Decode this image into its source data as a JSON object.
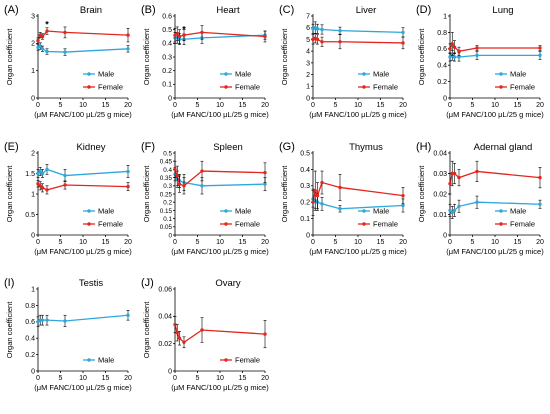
{
  "colors": {
    "male": "#2da7dc",
    "female": "#e3261e",
    "axis": "#000000",
    "errorbar": "#000000"
  },
  "x_axis_label": "(μM FANC/100 μL/25 g mice)",
  "y_axis_label": "Organ coefficient",
  "legend": {
    "male": "Male",
    "female": "Female"
  },
  "chart_data": [
    {
      "type": "line",
      "panel_label": "(A)",
      "title": "Brain",
      "x": [
        0,
        0.5,
        1,
        2,
        6,
        20
      ],
      "xlim": [
        0,
        20
      ],
      "xticks": [
        0,
        5,
        10,
        15,
        20
      ],
      "ylim": [
        0,
        3
      ],
      "yticks": [
        0,
        1,
        2,
        3
      ],
      "ytick_labels": [
        "0",
        "1",
        "2",
        "3"
      ],
      "legend_position": "bottom-right",
      "series": [
        {
          "name": "Male",
          "color_key": "male",
          "values": [
            1.85,
            1.9,
            1.8,
            1.7,
            1.68,
            1.8
          ],
          "errors": [
            0.1,
            0.12,
            0.1,
            0.1,
            0.12,
            0.12
          ]
        },
        {
          "name": "Female",
          "color_key": "female",
          "values": [
            2.1,
            2.3,
            2.25,
            2.45,
            2.4,
            2.3
          ],
          "errors": [
            0.1,
            0.1,
            0.1,
            0.12,
            0.2,
            0.25
          ]
        }
      ],
      "annotations": [
        {
          "text": "*",
          "x": 2,
          "y": 2.72
        }
      ]
    },
    {
      "type": "line",
      "panel_label": "(B)",
      "title": "Heart",
      "x": [
        0,
        0.5,
        1,
        2,
        6,
        20
      ],
      "xlim": [
        0,
        20
      ],
      "xticks": [
        0,
        5,
        10,
        15,
        20
      ],
      "ylim": [
        0,
        0.6
      ],
      "yticks": [
        0,
        0.1,
        0.2,
        0.3,
        0.4,
        0.5,
        0.6
      ],
      "ytick_labels": [
        "0",
        "0.1",
        "0.2",
        "0.3",
        "0.4",
        "0.5",
        "0.6"
      ],
      "legend_position": "bottom-right",
      "series": [
        {
          "name": "Male",
          "color_key": "male",
          "values": [
            0.44,
            0.44,
            0.43,
            0.43,
            0.44,
            0.46
          ],
          "errors": [
            0.04,
            0.04,
            0.04,
            0.04,
            0.04,
            0.03
          ]
        },
        {
          "name": "Female",
          "color_key": "female",
          "values": [
            0.46,
            0.47,
            0.45,
            0.46,
            0.48,
            0.45
          ],
          "errors": [
            0.05,
            0.05,
            0.05,
            0.04,
            0.05,
            0.04
          ]
        }
      ],
      "annotations": [
        {
          "text": "*",
          "x": 2,
          "y": 0.51
        }
      ]
    },
    {
      "type": "line",
      "panel_label": "(C)",
      "title": "Liver",
      "x": [
        0,
        0.5,
        1,
        2,
        6,
        20
      ],
      "xlim": [
        0,
        20
      ],
      "xticks": [
        0,
        5,
        10,
        15,
        20
      ],
      "ylim": [
        0,
        7
      ],
      "yticks": [
        0,
        1,
        2,
        3,
        4,
        5,
        6,
        7
      ],
      "ytick_labels": [
        "0",
        "1",
        "2",
        "3",
        "4",
        "5",
        "6",
        "7"
      ],
      "legend_position": "bottom-right",
      "series": [
        {
          "name": "Male",
          "color_key": "male",
          "values": [
            5.9,
            6.0,
            5.9,
            5.85,
            5.75,
            5.6
          ],
          "errors": [
            0.4,
            0.5,
            0.4,
            0.4,
            0.3,
            0.4
          ]
        },
        {
          "name": "Female",
          "color_key": "female",
          "values": [
            5.0,
            5.1,
            5.0,
            4.8,
            4.8,
            4.7
          ],
          "errors": [
            0.4,
            0.4,
            0.4,
            0.4,
            0.6,
            0.5
          ]
        }
      ],
      "annotations": []
    },
    {
      "type": "line",
      "panel_label": "(D)",
      "title": "Lung",
      "x": [
        0,
        0.5,
        1,
        2,
        6,
        20
      ],
      "xlim": [
        0,
        20
      ],
      "xticks": [
        0,
        5,
        10,
        15,
        20
      ],
      "ylim": [
        0,
        1
      ],
      "yticks": [
        0,
        0.2,
        0.4,
        0.6,
        0.8,
        1
      ],
      "ytick_labels": [
        "0",
        "0.2",
        "0.4",
        "0.6",
        "0.8",
        "1"
      ],
      "legend_position": "bottom-right",
      "series": [
        {
          "name": "Male",
          "color_key": "male",
          "values": [
            0.5,
            0.52,
            0.5,
            0.5,
            0.52,
            0.52
          ],
          "errors": [
            0.05,
            0.06,
            0.05,
            0.05,
            0.05,
            0.05
          ]
        },
        {
          "name": "Female",
          "color_key": "female",
          "values": [
            0.6,
            0.66,
            0.62,
            0.57,
            0.61,
            0.61
          ],
          "errors": [
            0.06,
            0.14,
            0.08,
            0.05,
            0.03,
            0.03
          ]
        }
      ],
      "annotations": []
    },
    {
      "type": "line",
      "panel_label": "(E)",
      "title": "Kidney",
      "x": [
        0,
        0.5,
        1,
        2,
        6,
        20
      ],
      "xlim": [
        0,
        20
      ],
      "xticks": [
        0,
        5,
        10,
        15,
        20
      ],
      "ylim": [
        0,
        2
      ],
      "yticks": [
        0,
        0.5,
        1,
        1.5,
        2
      ],
      "ytick_labels": [
        "0",
        "0.5",
        "1",
        "1.5",
        "2"
      ],
      "legend_position": "bottom-right",
      "series": [
        {
          "name": "Male",
          "color_key": "male",
          "values": [
            1.5,
            1.55,
            1.5,
            1.6,
            1.45,
            1.55
          ],
          "errors": [
            0.1,
            0.1,
            0.1,
            0.12,
            0.15,
            0.15
          ]
        },
        {
          "name": "Female",
          "color_key": "female",
          "values": [
            1.25,
            1.2,
            1.15,
            1.1,
            1.22,
            1.18
          ],
          "errors": [
            0.08,
            0.1,
            0.1,
            0.1,
            0.1,
            0.1
          ]
        }
      ],
      "annotations": []
    },
    {
      "type": "line",
      "panel_label": "(F)",
      "title": "Spleen",
      "x": [
        0,
        0.5,
        1,
        2,
        6,
        20
      ],
      "xlim": [
        0,
        20
      ],
      "xticks": [
        0,
        5,
        10,
        15,
        20
      ],
      "ylim": [
        0,
        0.5
      ],
      "yticks": [
        0,
        0.05,
        0.1,
        0.15,
        0.2,
        0.25,
        0.3,
        0.35,
        0.4,
        0.45,
        0.5
      ],
      "ytick_labels": [
        "0",
        "0.05",
        "0.1",
        "0.15",
        "0.2",
        "0.25",
        "0.3",
        "0.35",
        "0.4",
        "0.45",
        "0.5"
      ],
      "legend_position": "bottom-right",
      "series": [
        {
          "name": "Male",
          "color_key": "male",
          "values": [
            0.37,
            0.34,
            0.33,
            0.32,
            0.3,
            0.31
          ],
          "errors": [
            0.04,
            0.05,
            0.04,
            0.05,
            0.05,
            0.04
          ]
        },
        {
          "name": "Female",
          "color_key": "female",
          "values": [
            0.4,
            0.36,
            0.31,
            0.3,
            0.39,
            0.38
          ],
          "errors": [
            0.05,
            0.06,
            0.05,
            0.05,
            0.06,
            0.06
          ]
        }
      ],
      "annotations": []
    },
    {
      "type": "line",
      "panel_label": "(G)",
      "title": "Thymus",
      "x": [
        0,
        0.5,
        1,
        2,
        6,
        20
      ],
      "xlim": [
        0,
        20
      ],
      "xticks": [
        0,
        5,
        10,
        15,
        20
      ],
      "ylim": [
        0,
        0.5
      ],
      "yticks": [
        0,
        0.1,
        0.2,
        0.3,
        0.4,
        0.5
      ],
      "ytick_labels": [
        "0",
        "0.1",
        "0.2",
        "0.3",
        "0.4",
        "0.5"
      ],
      "legend_position": "bottom-right",
      "series": [
        {
          "name": "Male",
          "color_key": "male",
          "values": [
            0.22,
            0.21,
            0.2,
            0.19,
            0.16,
            0.18
          ],
          "errors": [
            0.05,
            0.05,
            0.05,
            0.04,
            0.02,
            0.04
          ]
        },
        {
          "name": "Female",
          "color_key": "female",
          "values": [
            0.2,
            0.27,
            0.24,
            0.32,
            0.29,
            0.24
          ],
          "errors": [
            0.08,
            0.12,
            0.08,
            0.07,
            0.08,
            0.05
          ]
        }
      ],
      "annotations": []
    },
    {
      "type": "line",
      "panel_label": "(H)",
      "title": "Adernal gland",
      "x": [
        0,
        0.5,
        1,
        2,
        6,
        20
      ],
      "xlim": [
        0,
        20
      ],
      "xticks": [
        0,
        5,
        10,
        15,
        20
      ],
      "ylim": [
        0,
        0.04
      ],
      "yticks": [
        0,
        0.01,
        0.02,
        0.03,
        0.04
      ],
      "ytick_labels": [
        "0",
        "0.01",
        "0.02",
        "0.03",
        "0.04"
      ],
      "legend_position": "bottom-right",
      "series": [
        {
          "name": "Male",
          "color_key": "male",
          "values": [
            0.012,
            0.011,
            0.012,
            0.014,
            0.016,
            0.015
          ],
          "errors": [
            0.003,
            0.003,
            0.003,
            0.003,
            0.003,
            0.002
          ]
        },
        {
          "name": "Female",
          "color_key": "female",
          "values": [
            0.025,
            0.03,
            0.03,
            0.028,
            0.031,
            0.028
          ],
          "errors": [
            0.005,
            0.006,
            0.005,
            0.004,
            0.005,
            0.005
          ]
        }
      ],
      "annotations": []
    },
    {
      "type": "line",
      "panel_label": "(I)",
      "title": "Testis",
      "x": [
        0,
        0.5,
        1,
        2,
        6,
        20
      ],
      "xlim": [
        0,
        20
      ],
      "xticks": [
        0,
        5,
        10,
        15,
        20
      ],
      "ylim": [
        0,
        1
      ],
      "yticks": [
        0,
        0.2,
        0.4,
        0.6,
        0.8,
        1
      ],
      "ytick_labels": [
        "0",
        "0.2",
        "0.4",
        "0.6",
        "0.8",
        "1"
      ],
      "legend_position": "bottom-right",
      "series": [
        {
          "name": "Male",
          "color_key": "male",
          "values": [
            0.6,
            0.62,
            0.62,
            0.62,
            0.61,
            0.68
          ],
          "errors": [
            0.06,
            0.06,
            0.06,
            0.06,
            0.07,
            0.06
          ]
        }
      ],
      "annotations": []
    },
    {
      "type": "line",
      "panel_label": "(J)",
      "title": "Ovary",
      "x": [
        0,
        0.5,
        1,
        2,
        6,
        20
      ],
      "xlim": [
        0,
        20
      ],
      "xticks": [
        0,
        5,
        10,
        15,
        20
      ],
      "ylim": [
        0,
        0.06
      ],
      "yticks": [
        0,
        0.02,
        0.04,
        0.06
      ],
      "ytick_labels": [
        "0",
        "0.02",
        "0.04",
        "0.06"
      ],
      "legend_position": "bottom-right",
      "series": [
        {
          "name": "Female",
          "color_key": "female",
          "values": [
            0.034,
            0.028,
            0.024,
            0.021,
            0.03,
            0.027
          ],
          "errors": [
            0.006,
            0.006,
            0.005,
            0.004,
            0.009,
            0.01
          ]
        }
      ],
      "annotations": []
    }
  ]
}
